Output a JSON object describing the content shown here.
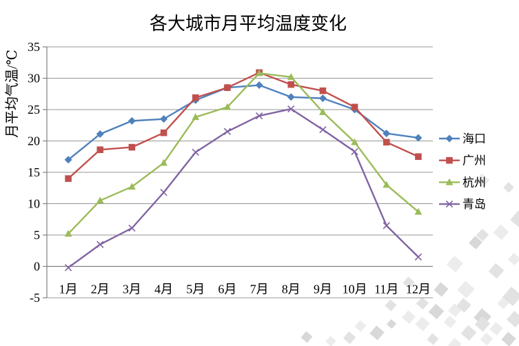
{
  "chart_data": {
    "type": "line",
    "title": "各大城市月平均温度变化",
    "ylabel": "月平均气温/℃",
    "categories": [
      "1月",
      "2月",
      "3月",
      "4月",
      "5月",
      "6月",
      "7月",
      "8月",
      "9月",
      "10月",
      "11月",
      "12月"
    ],
    "series": [
      {
        "name": "海口",
        "color": "#4F81BD",
        "marker": "diamond",
        "values": [
          17.0,
          21.1,
          23.2,
          23.5,
          26.5,
          28.5,
          28.9,
          27.0,
          26.8,
          25.0,
          21.2,
          20.5
        ]
      },
      {
        "name": "广州",
        "color": "#C0504D",
        "marker": "square",
        "values": [
          14.0,
          18.6,
          19.0,
          21.3,
          26.9,
          28.5,
          30.9,
          29.0,
          28.0,
          25.4,
          19.8,
          17.5
        ]
      },
      {
        "name": "杭州",
        "color": "#9BBB59",
        "marker": "triangle",
        "values": [
          5.2,
          10.5,
          12.7,
          16.5,
          23.8,
          25.4,
          30.8,
          30.2,
          24.6,
          19.8,
          13.0,
          8.7
        ]
      },
      {
        "name": "青岛",
        "color": "#8064A2",
        "marker": "x",
        "values": [
          -0.2,
          3.5,
          6.1,
          11.8,
          18.2,
          21.5,
          24.0,
          25.1,
          21.8,
          18.3,
          6.5,
          1.5
        ]
      }
    ],
    "ylim": [
      -5,
      35
    ],
    "yticks": [
      35,
      30,
      25,
      20,
      15,
      10,
      5,
      0,
      -5
    ],
    "xaxis_cross_at": 0,
    "grid": true,
    "legend_position": "right"
  },
  "style_colors": {
    "gridline": "#969696",
    "axis": "#7f7f7f",
    "text": "#000000",
    "background": "#ffffff",
    "watermark_shades": [
      "#ececec",
      "#e2e2e2",
      "#d8d8d8"
    ]
  }
}
